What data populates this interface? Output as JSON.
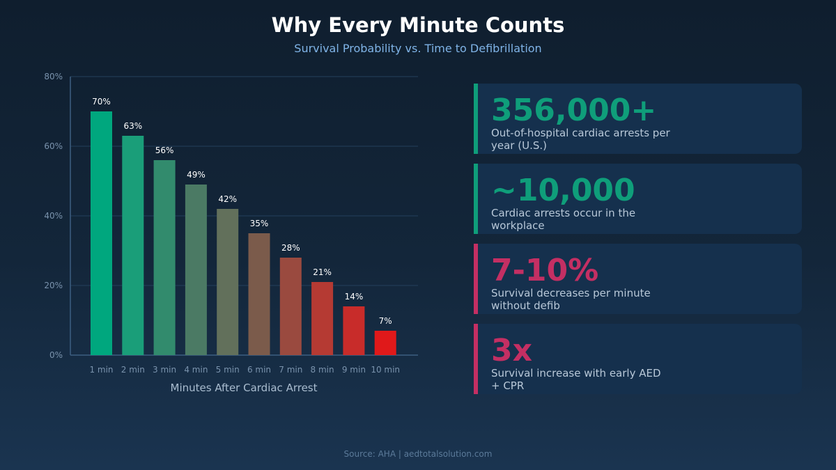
{
  "header": {
    "title": "Why Every Minute Counts",
    "subtitle": "Survival Probability vs. Time to Defibrillation"
  },
  "chart_data": {
    "type": "bar",
    "categories": [
      "1 min",
      "2 min",
      "3 min",
      "4 min",
      "5 min",
      "6 min",
      "7 min",
      "8 min",
      "9 min",
      "10 min"
    ],
    "values": [
      70,
      63,
      56,
      49,
      42,
      35,
      28,
      21,
      14,
      7
    ],
    "data_labels": [
      "70%",
      "63%",
      "56%",
      "49%",
      "42%",
      "35%",
      "28%",
      "21%",
      "14%",
      "7%"
    ],
    "bar_colors": [
      "#00a77e",
      "#1a9e79",
      "#328b6d",
      "#4b7a64",
      "#62705b",
      "#7b5b4b",
      "#9a4a3f",
      "#b53a33",
      "#c82c2a",
      "#e0191a"
    ],
    "xlabel": "Minutes After Cardiac Arrest",
    "ylabel": "",
    "ylim": [
      0,
      80
    ],
    "yticks": [
      0,
      20,
      40,
      60,
      80
    ],
    "ytick_labels": [
      "0%",
      "20%",
      "40%",
      "60%",
      "80%"
    ],
    "grid": true
  },
  "stats": [
    {
      "value": "356,000+",
      "desc": "Out-of-hospital cardiac arrests per year (U.S.)",
      "color": "#0f9e7a"
    },
    {
      "value": "~10,000",
      "desc": "Cardiac arrests occur in the workplace",
      "color": "#0f9e7a"
    },
    {
      "value": "7-10%",
      "desc": "Survival decreases per minute without defib",
      "color": "#c42f63"
    },
    {
      "value": "3x",
      "desc": "Survival increase with early AED + CPR",
      "color": "#c42f63"
    }
  ],
  "footer": {
    "source": "Source: AHA | aedtotalsolution.com"
  }
}
